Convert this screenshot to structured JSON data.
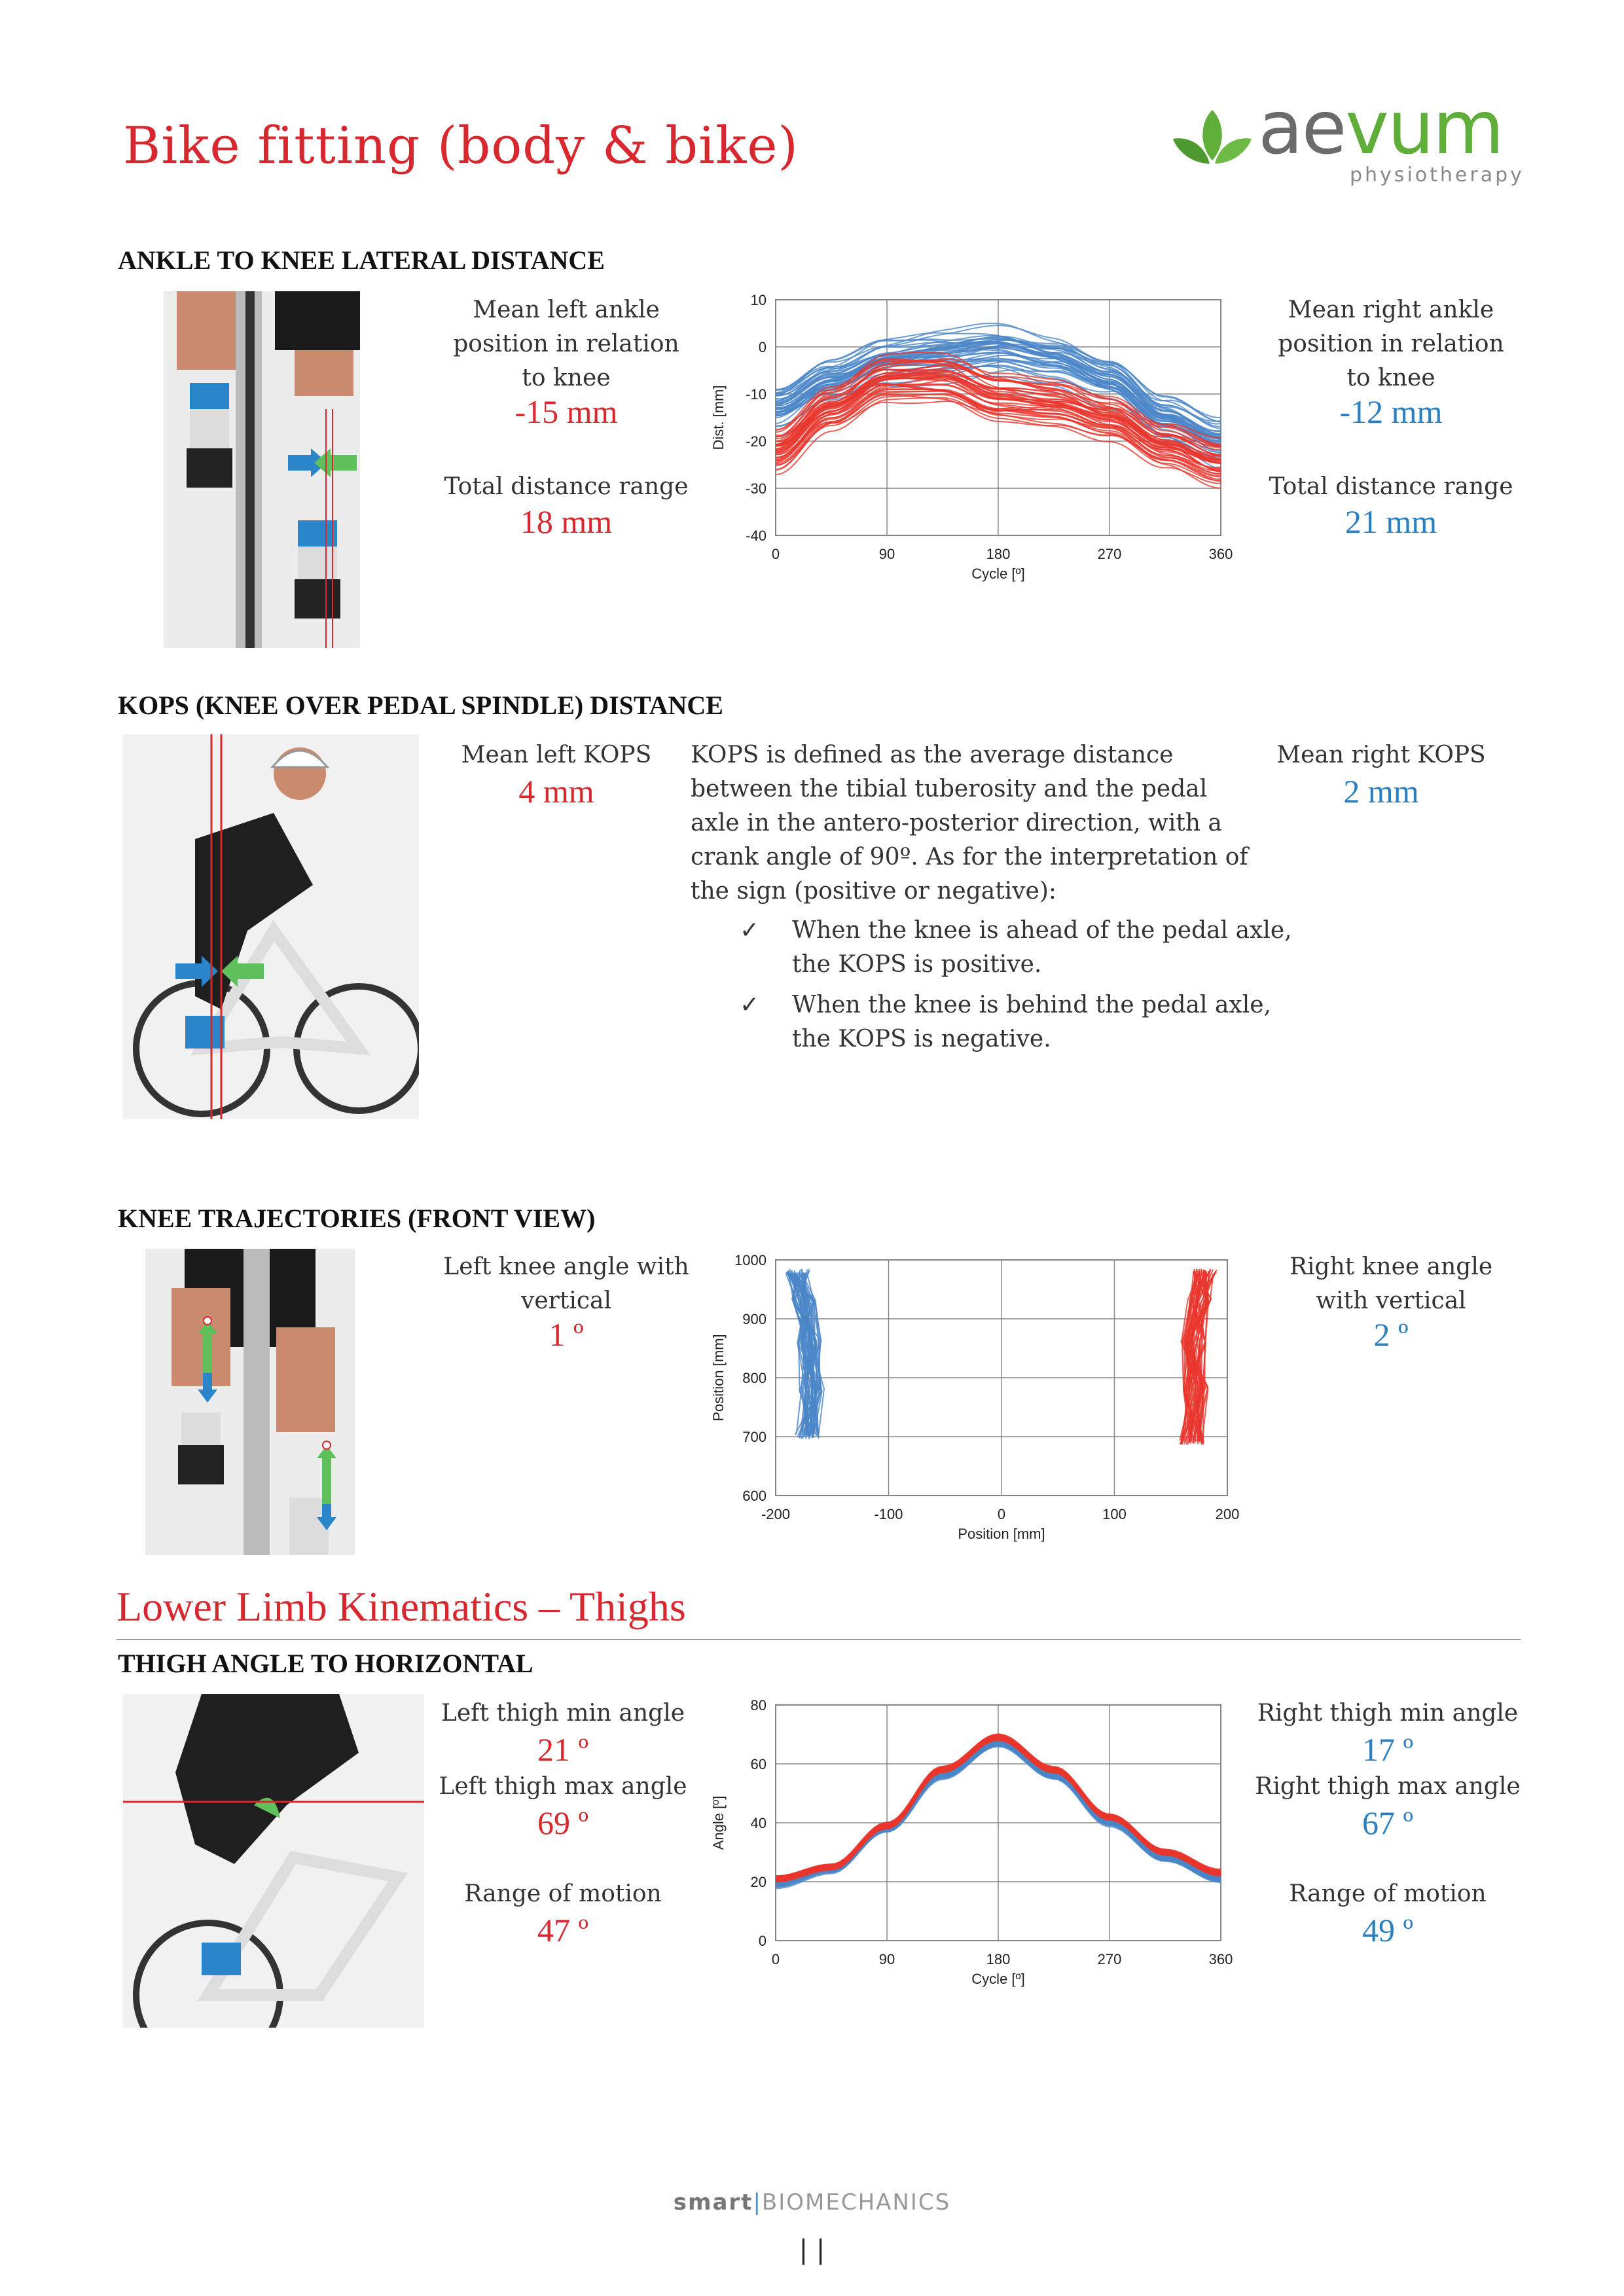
{
  "page_title": "Bike fitting (body & bike)",
  "logo": {
    "word_a": "ae",
    "word_b": "vum",
    "subtitle": "physiotherapy",
    "colors": {
      "grey": "#6b6b6b",
      "green": "#5fae3a"
    }
  },
  "sections": {
    "ankle": {
      "heading": "ANKLE TO KNEE LATERAL DISTANCE",
      "left": {
        "label": "Mean left ankle position in relation to knee",
        "value": "-15 mm",
        "range_label": "Total distance range",
        "range_value": "18 mm"
      },
      "right": {
        "label": "Mean right ankle position in relation to knee",
        "value": "-12 mm",
        "range_label": "Total distance range",
        "range_value": "21 mm"
      }
    },
    "kops": {
      "heading": "KOPS (KNEE OVER PEDAL SPINDLE) DISTANCE",
      "left": {
        "label": "Mean left KOPS",
        "value": "4 mm"
      },
      "right": {
        "label": "Mean right KOPS",
        "value": "2 mm"
      },
      "description": "KOPS is defined as the average distance between the tibial tuberosity and the pedal axle in the antero-posterior direction, with a crank angle of 90º. As for the interpretation of the sign (positive or negative):",
      "bullets": [
        "When the knee is ahead of the pedal axle, the KOPS is positive.",
        "When the knee is behind the pedal axle, the KOPS is negative."
      ]
    },
    "knee_traj": {
      "heading": "KNEE TRAJECTORIES (FRONT VIEW)",
      "left": {
        "label": "Left knee angle with vertical",
        "value": "1 º"
      },
      "right": {
        "label": "Right knee angle with vertical",
        "value": "2 º"
      }
    },
    "thighs": {
      "title": "Lower Limb Kinematics – Thighs",
      "heading": "THIGH ANGLE TO HORIZONTAL",
      "left": {
        "min_label": "Left thigh min angle",
        "min_value": "21 º",
        "max_label": "Left thigh max angle",
        "max_value": "69 º",
        "rom_label": "Range of motion",
        "rom_value": "47 º"
      },
      "right": {
        "min_label": "Right thigh min angle",
        "min_value": "17 º",
        "max_label": "Right thigh max angle",
        "max_value": "67 º",
        "rom_label": "Range of motion",
        "rom_value": "49 º"
      }
    }
  },
  "chart_data": [
    {
      "type": "line",
      "xlabel": "Cycle [º]",
      "ylabel": "Dist. [mm]",
      "xlim": [
        0,
        360
      ],
      "ylim": [
        -40,
        10
      ],
      "xticks": [
        "0",
        "90",
        "180",
        "270",
        "360"
      ],
      "yticks": [
        "10",
        "0",
        "-10",
        "-20",
        "-30",
        "-40"
      ],
      "grid": true,
      "series": [
        {
          "color": "#4a86c8",
          "x": [
            0,
            45,
            90,
            135,
            180,
            225,
            270,
            315,
            360
          ],
          "y": [
            -13,
            -7,
            -3,
            -2,
            -1,
            -3,
            -7,
            -15,
            -20
          ]
        },
        {
          "color": "#e8362d",
          "x": [
            0,
            45,
            90,
            135,
            180,
            225,
            270,
            315,
            360
          ],
          "y": [
            -22,
            -13,
            -7,
            -7,
            -11,
            -12,
            -15,
            -21,
            -25
          ]
        }
      ]
    },
    {
      "type": "scatter",
      "xlabel": "Position [mm]",
      "ylabel": "Position [mm]",
      "xlim": [
        -200,
        200
      ],
      "ylim": [
        600,
        1000
      ],
      "xticks": [
        "-200",
        "-100",
        "0",
        "100",
        "200"
      ],
      "yticks": [
        "1000",
        "900",
        "800",
        "700",
        "600"
      ],
      "grid": true,
      "series": [
        {
          "color": "#4a86c8",
          "x": [
            -180,
            -175,
            -170,
            -168,
            -172
          ],
          "y": [
            980,
            930,
            860,
            780,
            700
          ]
        },
        {
          "color": "#e8362d",
          "x": [
            180,
            175,
            170,
            172,
            168
          ],
          "y": [
            980,
            930,
            860,
            780,
            690
          ]
        }
      ]
    },
    {
      "type": "line",
      "xlabel": "Cycle [º]",
      "ylabel": "Angle [º]",
      "xlim": [
        0,
        360
      ],
      "ylim": [
        0,
        80
      ],
      "xticks": [
        "0",
        "90",
        "180",
        "270",
        "360"
      ],
      "yticks": [
        "80",
        "60",
        "40",
        "20",
        "0"
      ],
      "grid": true,
      "series": [
        {
          "color": "#4a86c8",
          "x": [
            0,
            45,
            90,
            135,
            180,
            225,
            270,
            315,
            360
          ],
          "y": [
            19,
            24,
            38,
            56,
            67,
            56,
            40,
            28,
            21
          ]
        },
        {
          "color": "#e8362d",
          "x": [
            0,
            45,
            90,
            135,
            180,
            225,
            270,
            315,
            360
          ],
          "y": [
            21,
            25,
            39,
            58,
            69,
            58,
            42,
            30,
            23
          ]
        }
      ]
    }
  ],
  "footer": {
    "brand_a": "smart",
    "brand_b": "BIOMECHANICS",
    "page_number": "| |"
  }
}
